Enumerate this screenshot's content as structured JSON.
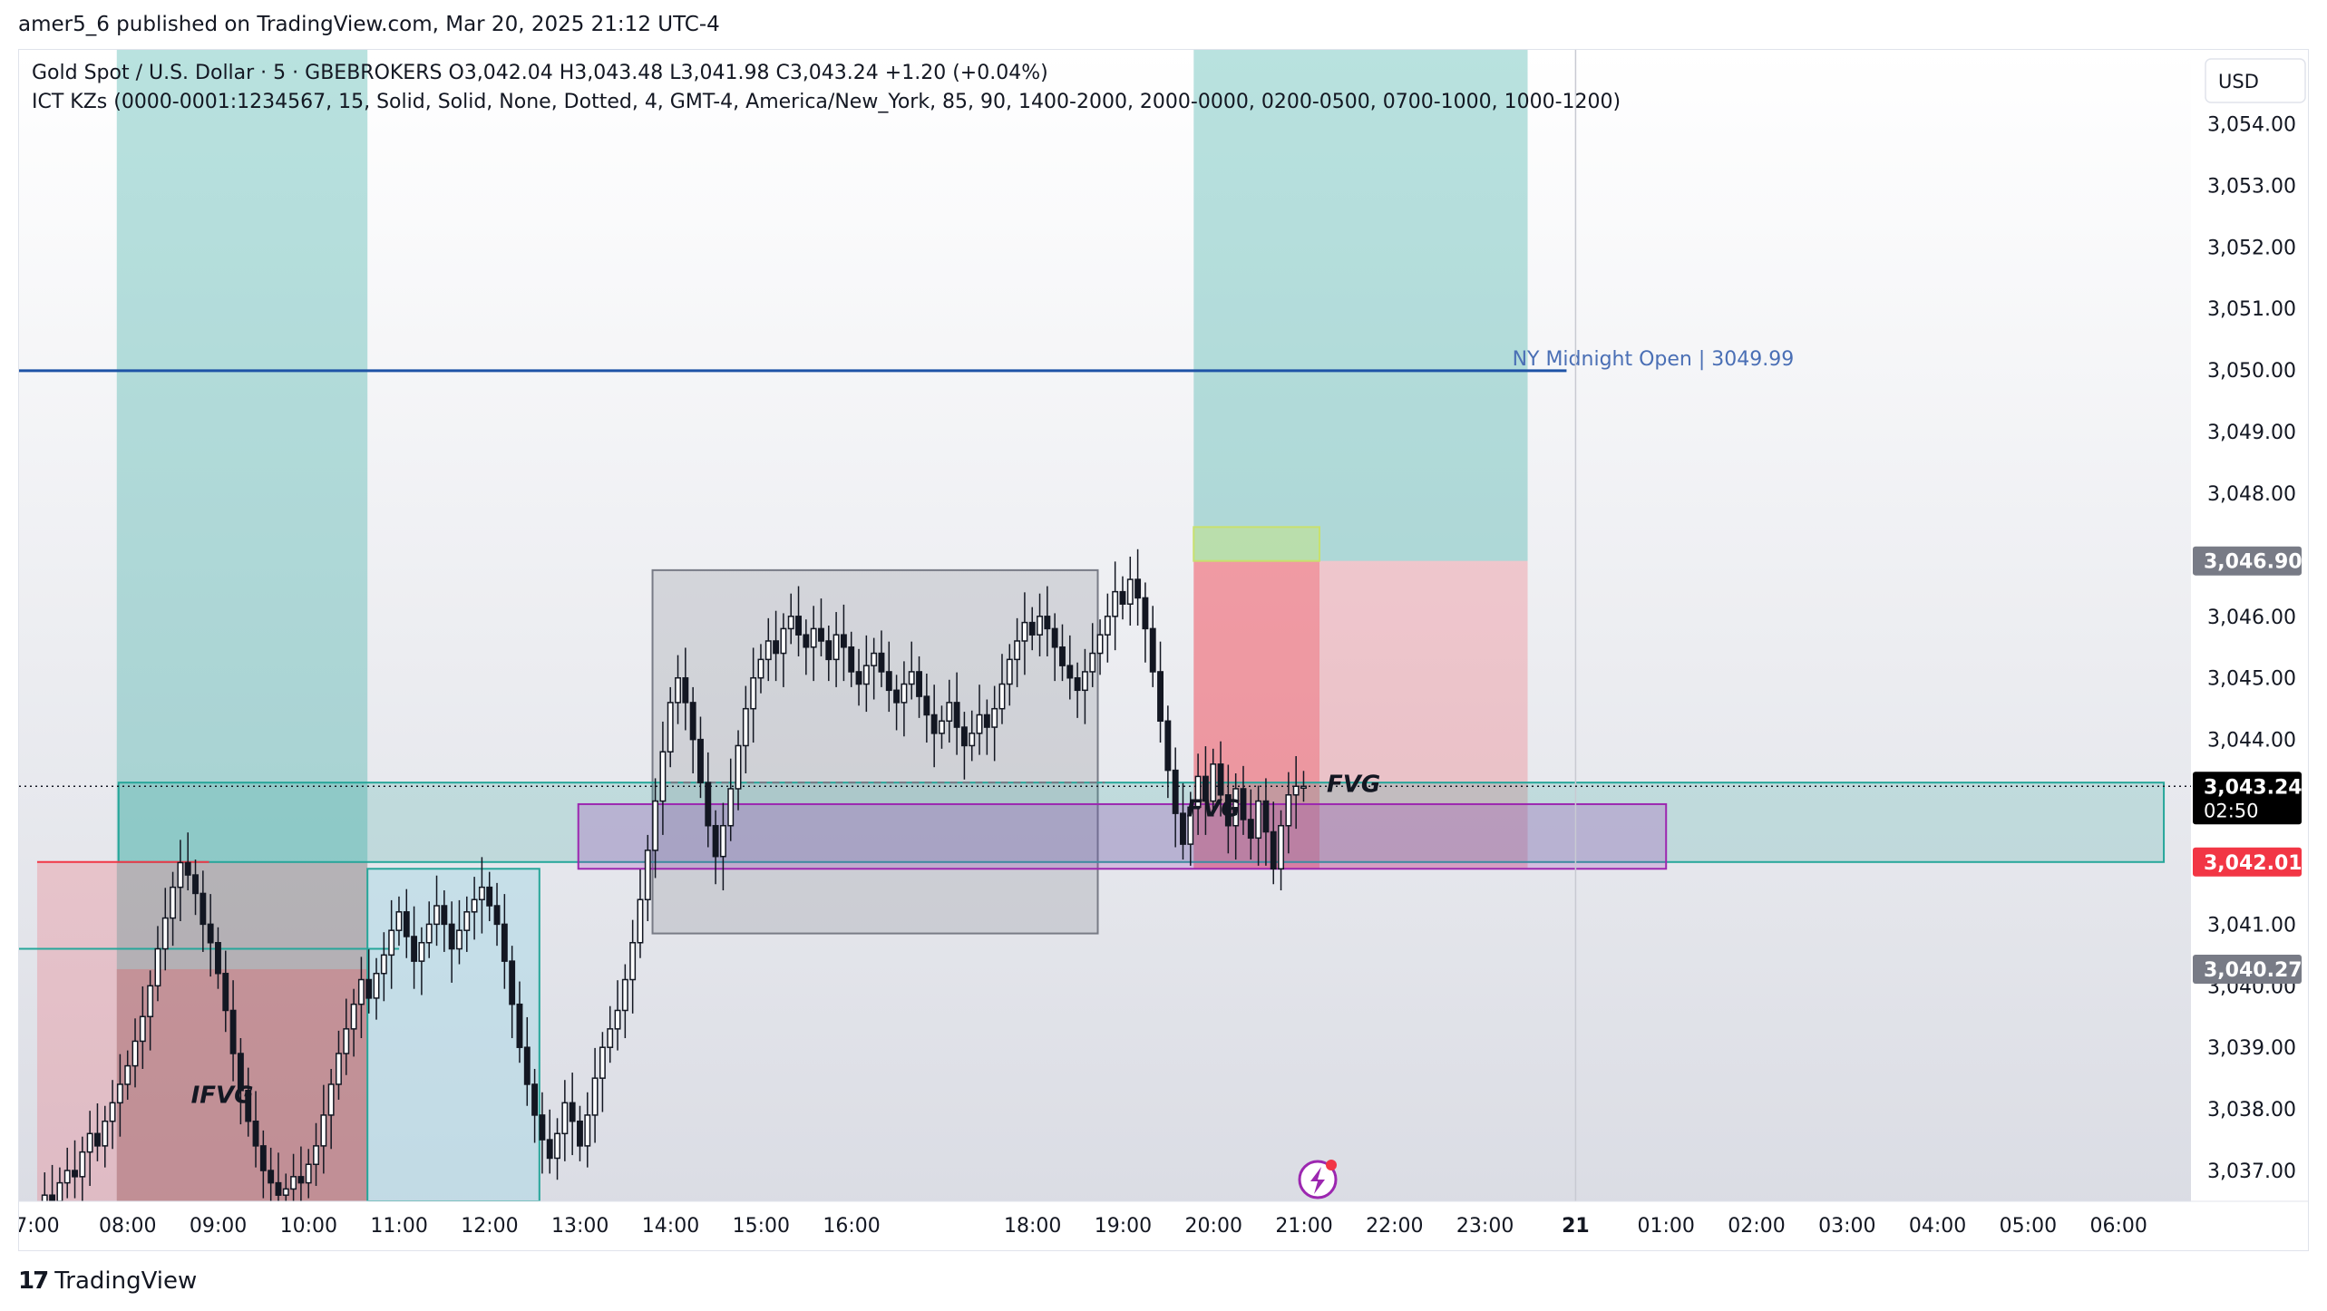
{
  "publisher_line": "amer5_6 published on TradingView.com, Mar 20, 2025 21:12 UTC-4",
  "footer": {
    "brand": "TradingView"
  },
  "currency_button": "USD",
  "chart_data": {
    "type": "candlestick",
    "legend": {
      "line1": "Gold Spot / U.S. Dollar · 5 · GBEBROKERS  O3,042.04  H3,043.48  L3,041.98  C3,043.24  +1.20 (+0.04%)",
      "line2": "ICT KZs (0000-0001:1234567, 15, Solid, Solid, None, Dotted, 4, GMT-4, America/New_York, 85, 90, 1400-2000, 2000-0000, 0200-0500, 0700-1000, 1000-1200)"
    },
    "y_axis": {
      "min": 3036.5,
      "max": 3055.2,
      "ticks": [
        "3,037.00",
        "3,038.00",
        "3,039.00",
        "3,040.00",
        "3,041.00",
        "3,042.00",
        "3,043.00",
        "3,044.00",
        "3,045.00",
        "3,046.00",
        "3,047.00",
        "3,048.00",
        "3,049.00",
        "3,050.00",
        "3,051.00",
        "3,052.00",
        "3,053.00",
        "3,054.00"
      ],
      "tick_values": [
        3037,
        3038,
        3039,
        3040,
        3041,
        3042,
        3043,
        3044,
        3045,
        3046,
        3047,
        3048,
        3049,
        3050,
        3051,
        3052,
        3053,
        3054
      ]
    },
    "x_axis": {
      "range_hours": [
        6.8,
        30.8
      ],
      "ticks": [
        {
          "label": "7:00",
          "t": 7
        },
        {
          "label": "08:00",
          "t": 8
        },
        {
          "label": "09:00",
          "t": 9
        },
        {
          "label": "10:00",
          "t": 10
        },
        {
          "label": "11:00",
          "t": 11
        },
        {
          "label": "12:00",
          "t": 12
        },
        {
          "label": "13:00",
          "t": 13
        },
        {
          "label": "14:00",
          "t": 14
        },
        {
          "label": "15:00",
          "t": 15
        },
        {
          "label": "16:00",
          "t": 16
        },
        {
          "label": "18:00",
          "t": 18
        },
        {
          "label": "19:00",
          "t": 19
        },
        {
          "label": "20:00",
          "t": 20
        },
        {
          "label": "21:00",
          "t": 21
        },
        {
          "label": "22:00",
          "t": 22
        },
        {
          "label": "23:00",
          "t": 23
        },
        {
          "label": "21",
          "t": 24,
          "bold": true
        },
        {
          "label": "01:00",
          "t": 25
        },
        {
          "label": "02:00",
          "t": 26
        },
        {
          "label": "03:00",
          "t": 27
        },
        {
          "label": "04:00",
          "t": 28
        },
        {
          "label": "05:00",
          "t": 29
        },
        {
          "label": "06:00",
          "t": 30
        }
      ]
    },
    "price_labels": [
      {
        "text": "3,046.90",
        "value": 3046.9,
        "bg": "#787b86"
      },
      {
        "text": "3,043.24",
        "sub": "02:50",
        "value": 3043.24,
        "bg": "#000000"
      },
      {
        "text": "3,042.01",
        "value": 3042.01,
        "bg": "#f23645"
      },
      {
        "text": "3,040.27",
        "value": 3040.27,
        "bg": "#787b86"
      }
    ],
    "current_price": 3043.24,
    "ny_midnight": {
      "label": "NY Midnight Open",
      "value_text": "3049.99",
      "value": 3049.99,
      "color": "#1e53a6",
      "t_start": 6.8,
      "t_end": 23.9
    },
    "annotations": [
      {
        "text": "IFVG",
        "t": 8.7,
        "y": 3038.1
      },
      {
        "text": "FVG",
        "t": 19.7,
        "y": 3042.75
      },
      {
        "text": "FVG",
        "t": 21.25,
        "y": 3043.15
      }
    ],
    "zones": [
      {
        "kind": "session",
        "t0": 7.88,
        "t1": 10.65,
        "y0": 3036.5,
        "y1": 3055.2,
        "fill": "rgba(38,166,154,0.32)"
      },
      {
        "kind": "session",
        "t0": 19.78,
        "t1": 23.47,
        "y0": 3046.9,
        "y1": 3055.2,
        "fill": "rgba(38,166,154,0.32)"
      },
      {
        "kind": "loss",
        "t0": 7.0,
        "t1": 10.65,
        "y0": 3036.5,
        "y1": 3042.01,
        "fill": "rgba(242,54,69,0.2)"
      },
      {
        "kind": "loss",
        "t0": 7.88,
        "t1": 10.65,
        "y0": 3036.5,
        "y1": 3040.27,
        "fill": "rgba(242,54,69,0.25)"
      },
      {
        "kind": "box",
        "t0": 10.65,
        "t1": 12.55,
        "y0": 3036.5,
        "y1": 3041.9,
        "fill": "rgba(173,216,230,0.55)",
        "stroke": "#26a69a"
      },
      {
        "kind": "range",
        "t0": 13.8,
        "t1": 18.72,
        "y0": 3040.85,
        "y1": 3046.75,
        "fill": "rgba(120,123,134,0.22)",
        "stroke": "#787b86"
      },
      {
        "kind": "loss",
        "t0": 19.78,
        "t1": 23.47,
        "y0": 3041.9,
        "y1": 3046.9,
        "fill": "rgba(242,54,69,0.22)"
      },
      {
        "kind": "loss",
        "t0": 19.78,
        "t1": 21.17,
        "y0": 3041.9,
        "y1": 3046.9,
        "fill": "rgba(242,54,69,0.3)"
      },
      {
        "kind": "win",
        "t0": 19.78,
        "t1": 21.17,
        "y0": 3046.9,
        "y1": 3047.45,
        "fill": "rgba(200,230,120,0.45)",
        "stroke": "#c8e06e"
      },
      {
        "kind": "fvg",
        "t0": 7.9,
        "t1": 30.5,
        "y0": 3042.01,
        "y1": 3043.3,
        "fill": "rgba(38,166,154,0.2)",
        "stroke": "#26a69a"
      },
      {
        "kind": "fvg",
        "t0": 12.98,
        "t1": 25.0,
        "y0": 3041.9,
        "y1": 3042.95,
        "fill": "rgba(156,39,176,0.22)",
        "stroke": "#9c27b0"
      }
    ],
    "levels": [
      {
        "y": 3042.01,
        "t0": 7.0,
        "t1": 8.9,
        "color": "#f23645"
      },
      {
        "y": 3040.6,
        "t0": 6.8,
        "t1": 11.0,
        "color": "#26a69a"
      },
      {
        "y": 3043.3,
        "t0": 14.0,
        "t1": 18.8,
        "color": "#787b86",
        "dash": true
      }
    ],
    "candles_count": 168,
    "candles_t_start": 7.0,
    "candles_interval_hours": 0.0833,
    "candles_path_note_free": true,
    "closes": [
      3036.4,
      3036.6,
      3036.5,
      3036.8,
      3037.0,
      3036.9,
      3037.3,
      3037.6,
      3037.4,
      3037.8,
      3038.1,
      3038.4,
      3038.7,
      3039.1,
      3039.5,
      3040.0,
      3040.6,
      3041.1,
      3041.6,
      3042.0,
      3041.8,
      3041.5,
      3041.0,
      3040.7,
      3040.2,
      3039.6,
      3038.9,
      3038.3,
      3037.8,
      3037.4,
      3037.0,
      3036.8,
      3036.6,
      3036.7,
      3036.9,
      3036.8,
      3037.1,
      3037.4,
      3037.9,
      3038.4,
      3038.9,
      3039.3,
      3039.7,
      3040.1,
      3039.8,
      3040.2,
      3040.5,
      3040.9,
      3041.2,
      3040.8,
      3040.4,
      3040.7,
      3041.0,
      3041.3,
      3041.0,
      3040.6,
      3040.9,
      3041.2,
      3041.4,
      3041.6,
      3041.3,
      3041.0,
      3040.4,
      3039.7,
      3039.0,
      3038.4,
      3037.9,
      3037.5,
      3037.2,
      3037.6,
      3038.1,
      3037.8,
      3037.4,
      3037.9,
      3038.5,
      3039.0,
      3039.3,
      3039.6,
      3040.1,
      3040.7,
      3041.4,
      3042.2,
      3043.0,
      3043.8,
      3044.6,
      3045.0,
      3044.6,
      3044.0,
      3043.3,
      3042.6,
      3042.1,
      3042.6,
      3043.2,
      3043.9,
      3044.5,
      3045.0,
      3045.3,
      3045.6,
      3045.4,
      3045.8,
      3046.0,
      3045.7,
      3045.5,
      3045.8,
      3045.6,
      3045.3,
      3045.7,
      3045.5,
      3045.1,
      3044.9,
      3045.2,
      3045.4,
      3045.1,
      3044.8,
      3044.6,
      3044.9,
      3045.1,
      3044.7,
      3044.4,
      3044.1,
      3044.3,
      3044.6,
      3044.2,
      3043.9,
      3044.1,
      3044.4,
      3044.2,
      3044.5,
      3044.9,
      3045.3,
      3045.6,
      3045.9,
      3045.7,
      3046.0,
      3045.8,
      3045.5,
      3045.2,
      3045.0,
      3044.8,
      3045.1,
      3045.4,
      3045.7,
      3046.0,
      3046.4,
      3046.2,
      3046.6,
      3046.3,
      3045.8,
      3045.1,
      3044.3,
      3043.5,
      3042.8,
      3042.3,
      3042.9,
      3043.4,
      3043.0,
      3043.6,
      3043.1,
      3042.6,
      3043.2,
      3042.7,
      3042.4,
      3043.0,
      3042.5,
      3041.9,
      3042.6,
      3043.1,
      3043.24,
      3043.24
    ]
  }
}
